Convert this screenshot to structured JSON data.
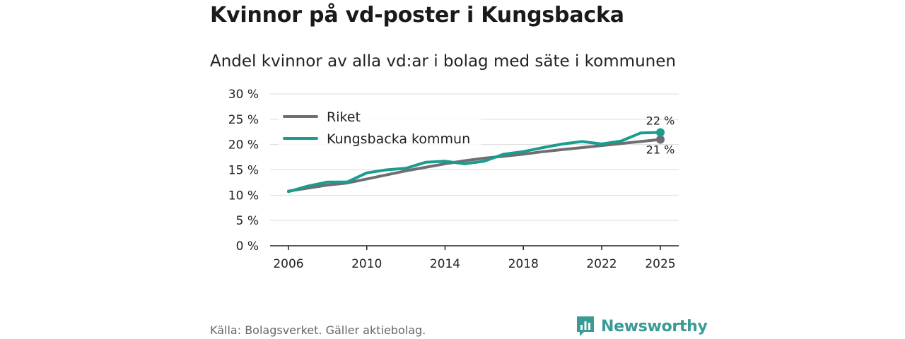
{
  "title": "Kvinnor på vd-poster i Kungsbacka",
  "subtitle": "Andel kvinnor av alla vd:ar i bolag med säte i kommunen",
  "source": "Källa: Bolagsverket. Gäller aktiebolag.",
  "brand": {
    "name": "Newsworthy",
    "icon": "bar-chart-logo-icon",
    "color": "#3a9b95"
  },
  "chart_data": {
    "type": "line",
    "x": [
      2006,
      2007,
      2008,
      2009,
      2010,
      2011,
      2012,
      2013,
      2014,
      2015,
      2016,
      2017,
      2018,
      2019,
      2020,
      2021,
      2022,
      2023,
      2024,
      2025
    ],
    "series": [
      {
        "name": "Riket",
        "color": "#6e6e73",
        "values": [
          10.8,
          11.4,
          12.0,
          12.4,
          13.2,
          14.0,
          14.8,
          15.5,
          16.2,
          16.8,
          17.3,
          17.7,
          18.1,
          18.6,
          19.0,
          19.4,
          19.8,
          20.2,
          20.6,
          21.0
        ]
      },
      {
        "name": "Kungsbacka kommun",
        "color": "#1a9c8f",
        "values": [
          10.7,
          11.8,
          12.6,
          12.6,
          14.4,
          15.0,
          15.3,
          16.5,
          16.7,
          16.2,
          16.7,
          18.1,
          18.6,
          19.4,
          20.1,
          20.6,
          20.1,
          20.7,
          22.3,
          22.4
        ]
      }
    ],
    "end_labels": {
      "Kungsbacka kommun": "22 %",
      "Riket": "21 %"
    },
    "yticks": [
      "0 %",
      "5 %",
      "10 %",
      "15 %",
      "20 %",
      "25 %",
      "30 %"
    ],
    "ytick_values": [
      0,
      5,
      10,
      15,
      20,
      25,
      30
    ],
    "xticks": [
      2006,
      2010,
      2014,
      2018,
      2022,
      2025
    ],
    "ylim": [
      0,
      30
    ],
    "xlim": [
      2006,
      2025
    ],
    "grid": "horizontal",
    "legend": "top-left"
  }
}
